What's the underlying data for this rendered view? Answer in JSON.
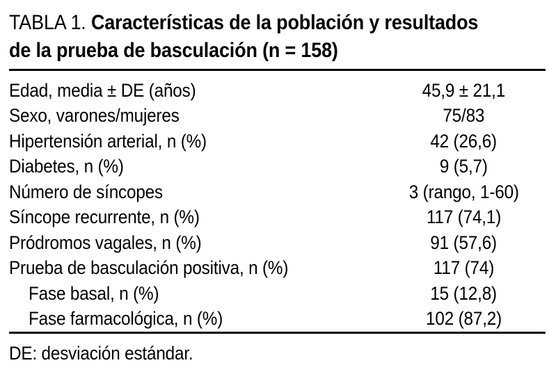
{
  "table": {
    "label": "TABLA 1.",
    "title_line1": "Características de la población y resultados",
    "title_line2": "de la prueba de basculación (n = 158)",
    "sample_size": "n = 158",
    "rows": [
      {
        "label": "Edad, media ± DE (años)",
        "value": "45,9 ± 21,1",
        "indent": false
      },
      {
        "label": "Sexo, varones/mujeres",
        "value": "75/83",
        "indent": false
      },
      {
        "label": "Hipertensión arterial, n (%)",
        "value": "42 (26,6)",
        "indent": false
      },
      {
        "label": "Diabetes, n (%)",
        "value": "9 (5,7)",
        "indent": false
      },
      {
        "label": "Número de síncopes",
        "value": "3 (rango, 1-60)",
        "indent": false
      },
      {
        "label": "Síncope recurrente, n (%)",
        "value": "117 (74,1)",
        "indent": false
      },
      {
        "label": "Pródromos vagales, n (%)",
        "value": "91 (57,6)",
        "indent": false
      },
      {
        "label": "Prueba de basculación positiva, n (%)",
        "value": "117 (74)",
        "indent": false
      },
      {
        "label": "Fase basal, n (%)",
        "value": "15 (12,8)",
        "indent": true
      },
      {
        "label": "Fase farmacológica, n (%)",
        "value": "102 (87,2)",
        "indent": true
      }
    ],
    "footnote": "DE: desviación estándar.",
    "colors": {
      "text": "#000000",
      "background": "#ffffff",
      "rule": "#000000"
    }
  }
}
